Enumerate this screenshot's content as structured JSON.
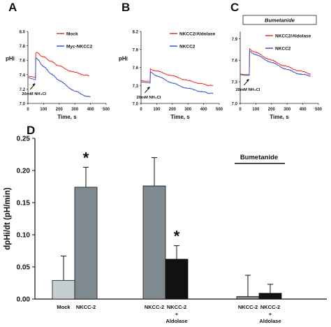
{
  "chart_data": [
    {
      "type": "line",
      "panel": "A",
      "ylabel": "pHi",
      "xlabel": "Time, s",
      "xlim": [
        0,
        500
      ],
      "ylim": [
        7.0,
        8.0
      ],
      "xticks": [
        "0",
        "100",
        "200",
        "300",
        "400",
        "500"
      ],
      "yticks": [
        "7.0",
        "7.2",
        "7.4",
        "7.6",
        "7.8",
        "8.0"
      ],
      "annotation": "20mM NH₄Cl",
      "legend_position": "top-right",
      "series": [
        {
          "name": "Mock",
          "color": "#e8332a",
          "x": [
            0,
            30,
            48,
            50,
            55,
            80,
            120,
            160,
            200,
            250,
            300,
            350,
            390
          ],
          "y": [
            7.38,
            7.37,
            7.36,
            7.7,
            7.71,
            7.67,
            7.62,
            7.57,
            7.52,
            7.47,
            7.43,
            7.4,
            7.38
          ]
        },
        {
          "name": "Myc-NKCC2",
          "color": "#3a55c8",
          "x": [
            0,
            30,
            48,
            50,
            55,
            80,
            120,
            160,
            200,
            250,
            300,
            350,
            400
          ],
          "y": [
            7.36,
            7.34,
            7.33,
            7.62,
            7.63,
            7.56,
            7.47,
            7.39,
            7.32,
            7.24,
            7.17,
            7.12,
            7.09
          ]
        }
      ]
    },
    {
      "type": "line",
      "panel": "B",
      "ylabel": "pHi",
      "xlabel": "Time, s",
      "xlim": [
        0,
        500
      ],
      "ylim": [
        7.0,
        8.2
      ],
      "xticks": [
        "0",
        "100",
        "200",
        "300",
        "400",
        "500"
      ],
      "yticks": [
        "7.0",
        "7.3",
        "7.6",
        "7.9",
        "8.2"
      ],
      "annotation": "20mM NH₄Cl",
      "legend_position": "top-right",
      "series": [
        {
          "name": "NKCC2/Aldolase",
          "color": "#e8332a",
          "x": [
            0,
            30,
            58,
            60,
            65,
            100,
            150,
            200,
            250,
            300,
            350,
            400,
            460
          ],
          "y": [
            7.38,
            7.37,
            7.37,
            7.58,
            7.57,
            7.54,
            7.5,
            7.46,
            7.42,
            7.38,
            7.35,
            7.32,
            7.29
          ]
        },
        {
          "name": "NKCC2",
          "color": "#3a55c8",
          "x": [
            0,
            30,
            58,
            60,
            65,
            100,
            150,
            200,
            250,
            300,
            350,
            400,
            460
          ],
          "y": [
            7.36,
            7.35,
            7.34,
            7.53,
            7.52,
            7.46,
            7.4,
            7.34,
            7.29,
            7.25,
            7.22,
            7.19,
            7.16
          ]
        }
      ]
    },
    {
      "type": "line",
      "panel": "C",
      "ylabel": "",
      "xlabel": "Time, s",
      "xlim": [
        0,
        500
      ],
      "ylim": [
        7.0,
        8.0
      ],
      "xticks": [
        "0",
        "100",
        "200",
        "300",
        "400",
        "500"
      ],
      "yticks": [
        "7.0",
        "7.3",
        "7.6",
        "7.9"
      ],
      "banner": "Bumetanide",
      "annotation": "20mM NH₄Cl",
      "legend_position": "top-right",
      "series": [
        {
          "name": "NKCC2/Aldolase",
          "color": "#e8332a",
          "x": [
            0,
            30,
            58,
            60,
            65,
            100,
            150,
            200,
            250,
            300,
            350,
            400,
            450
          ],
          "y": [
            7.41,
            7.4,
            7.4,
            7.76,
            7.75,
            7.71,
            7.65,
            7.6,
            7.55,
            7.51,
            7.47,
            7.44,
            7.41
          ]
        },
        {
          "name": "NKCC2",
          "color": "#3a55c8",
          "x": [
            0,
            30,
            58,
            60,
            65,
            100,
            150,
            200,
            250,
            300,
            350,
            400,
            450
          ],
          "y": [
            7.4,
            7.39,
            7.39,
            7.73,
            7.72,
            7.68,
            7.62,
            7.57,
            7.52,
            7.47,
            7.43,
            7.4,
            7.38
          ]
        }
      ]
    },
    {
      "type": "bar",
      "panel": "D",
      "ylabel": "dpHi/dt (pH/min)",
      "ylim": [
        0,
        0.25
      ],
      "yticks": [
        "0.00",
        "0.05",
        "0.10",
        "0.15",
        "0.20",
        "0.25"
      ],
      "banner": "Bumetanide",
      "bars": [
        {
          "category": "Mock",
          "label_lines": [
            "Mock"
          ],
          "value": 0.029,
          "error": 0.038,
          "color": "#c5cfd3",
          "significant": false
        },
        {
          "category": "NKCC-2",
          "label_lines": [
            "NKCC-2"
          ],
          "value": 0.174,
          "error": 0.031,
          "color": "#7f8a90",
          "significant": true
        },
        {
          "category": "NKCC-2",
          "label_lines": [
            "NKCC-2"
          ],
          "value": 0.176,
          "error": 0.044,
          "color": "#7f8a90",
          "significant": false
        },
        {
          "category": "NKCC-2 + Aldolase",
          "label_lines": [
            "NKCC-2",
            "+",
            "Aldolase"
          ],
          "value": 0.062,
          "error": 0.021,
          "color": "#111111",
          "significant": true
        },
        {
          "category": "NKCC-2",
          "label_lines": [
            "NKCC-2"
          ],
          "value": 0.004,
          "error": 0.033,
          "color": "#7f8a90",
          "significant": false
        },
        {
          "category": "NKCC-2 + Aldolase",
          "label_lines": [
            "NKCC-2",
            "+",
            "Aldolase"
          ],
          "value": 0.009,
          "error": 0.014,
          "color": "#111111",
          "significant": false
        }
      ],
      "significance_marker": "*"
    }
  ]
}
